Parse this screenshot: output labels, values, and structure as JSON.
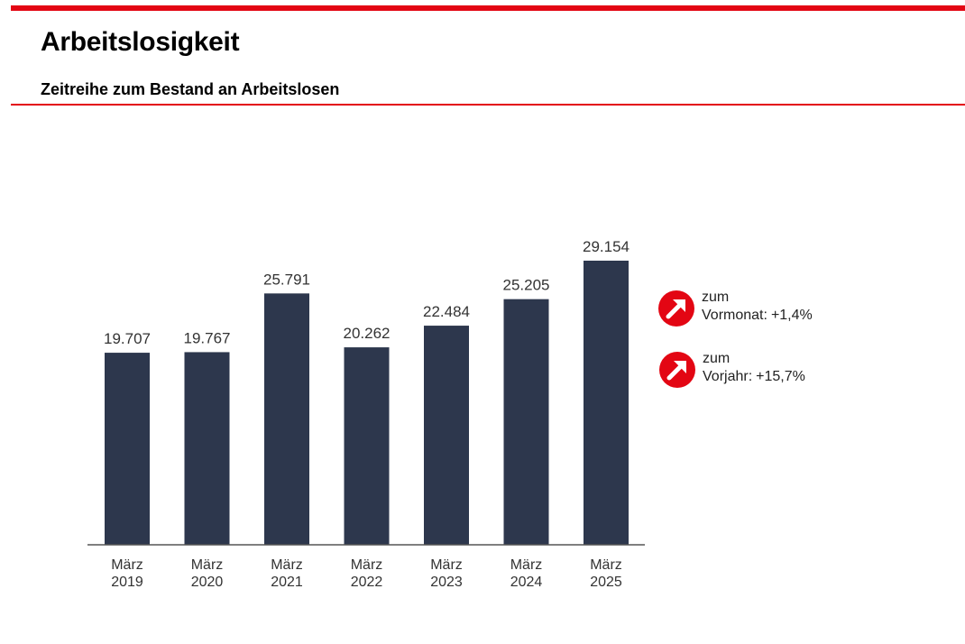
{
  "header": {
    "title": "Arbeitslosigkeit",
    "subtitle": "Zeitreihe zum Bestand an Arbeitslosen"
  },
  "colors": {
    "accent": "#e30613",
    "bar": "#2d374d",
    "text": "#333333"
  },
  "chart_data": {
    "type": "bar",
    "title": "",
    "xlabel": "",
    "ylabel": "",
    "categories": [
      [
        "März",
        "2019"
      ],
      [
        "März",
        "2020"
      ],
      [
        "März",
        "2021"
      ],
      [
        "März",
        "2022"
      ],
      [
        "März",
        "2023"
      ],
      [
        "März",
        "2024"
      ],
      [
        "März",
        "2025"
      ]
    ],
    "values": [
      19707,
      19767,
      25791,
      20262,
      22484,
      25205,
      29154
    ],
    "value_labels": [
      "19.707",
      "19.767",
      "25.791",
      "20.262",
      "22.484",
      "25.205",
      "29.154"
    ],
    "ylim": [
      0,
      29154
    ],
    "grid": false,
    "y_axis_visible": false
  },
  "indicators": [
    {
      "icon": "trend-up-arrow-icon",
      "line1": "zum",
      "line2": "Vormonat:",
      "value": "+1,4%"
    },
    {
      "icon": "trend-up-arrow-icon",
      "line1": "zum",
      "line2": "Vorjahr:",
      "value": "+15,7%"
    }
  ]
}
